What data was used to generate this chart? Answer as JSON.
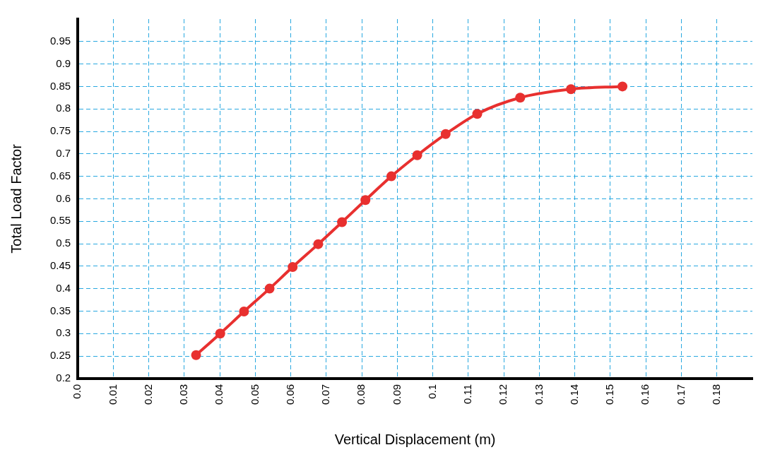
{
  "chart_data": {
    "type": "line",
    "xlabel": "Vertical Displacement (m)",
    "ylabel": "Total Load Factor",
    "x": [
      0.0333,
      0.0401,
      0.0468,
      0.054,
      0.0605,
      0.0677,
      0.0744,
      0.081,
      0.0883,
      0.0956,
      0.1036,
      0.1125,
      0.1246,
      0.1389,
      0.1534
    ],
    "series": [
      {
        "color": "#e8302f",
        "values": [
          0.252,
          0.3,
          0.349,
          0.4,
          0.448,
          0.499,
          0.548,
          0.597,
          0.65,
          0.697,
          0.744,
          0.789,
          0.825,
          0.844,
          0.85
        ]
      }
    ],
    "xlim": [
      0,
      0.19
    ],
    "xticks": [
      {
        "value": 0,
        "label": "0.0"
      },
      0.01,
      0.02,
      0.03,
      0.04,
      0.05,
      0.06,
      0.07,
      0.08,
      0.09,
      0.1,
      0.11,
      0.12,
      0.13,
      0.14,
      0.15,
      0.16,
      0.17,
      0.18
    ],
    "ylim": [
      0.2,
      1.0
    ],
    "yticks": [
      0.2,
      0.25,
      0.3,
      0.35,
      0.4,
      0.45,
      0.5,
      0.55,
      0.6,
      0.65,
      0.7,
      0.75,
      0.8,
      0.85,
      0.9,
      0.95
    ],
    "grid": true,
    "marker": "circle",
    "line_style": "solid",
    "legend": false
  }
}
